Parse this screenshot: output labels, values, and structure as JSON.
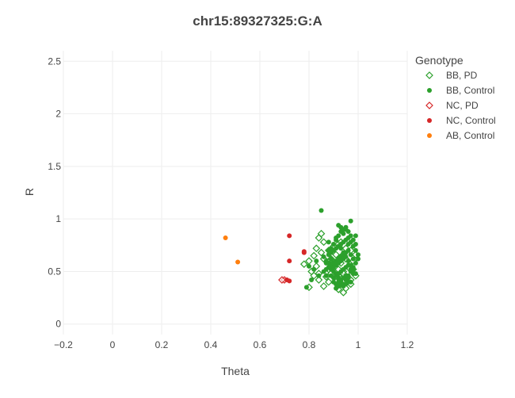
{
  "chart_data": {
    "type": "scatter",
    "title": "chr15:89327325:G:A",
    "xlabel": "Theta",
    "ylabel": "R",
    "xlim": [
      -0.2,
      1.2
    ],
    "ylim": [
      -0.1,
      2.6
    ],
    "xticks": [
      -0.2,
      0,
      0.2,
      0.4,
      0.6,
      0.8,
      1,
      1.2
    ],
    "xtick_labels": [
      "−0.2",
      "0",
      "0.2",
      "0.4",
      "0.6",
      "0.8",
      "1",
      "1.2"
    ],
    "yticks": [
      0,
      0.5,
      1,
      1.5,
      2,
      2.5
    ],
    "ytick_labels": [
      "0",
      "0.5",
      "1",
      "1.5",
      "2",
      "2.5"
    ],
    "grid": true,
    "legend": {
      "title": "Genotype",
      "position": "top-right"
    },
    "series": [
      {
        "name": "BB, PD",
        "marker": "diamond-open",
        "color": "#2ca02c",
        "x": [
          0.84,
          0.85,
          0.86,
          0.83,
          0.82,
          0.8,
          0.78,
          0.81,
          0.84,
          0.87,
          0.88,
          0.86,
          0.84,
          0.82,
          0.8,
          0.83,
          0.85,
          0.88,
          0.9,
          0.92,
          0.93,
          0.95,
          0.97,
          0.99,
          0.98,
          0.96,
          0.94,
          0.92,
          0.91,
          0.93,
          0.95,
          0.97,
          0.96,
          0.94,
          0.92,
          0.9,
          0.89,
          0.91,
          0.93,
          0.95,
          0.98,
          0.99,
          0.97,
          0.94,
          0.92,
          0.9,
          0.88,
          0.86,
          0.89,
          0.93
        ],
        "y": [
          0.82,
          0.86,
          0.78,
          0.72,
          0.65,
          0.6,
          0.57,
          0.5,
          0.48,
          0.45,
          0.4,
          0.36,
          0.42,
          0.46,
          0.35,
          0.55,
          0.68,
          0.7,
          0.74,
          0.76,
          0.78,
          0.72,
          0.7,
          0.66,
          0.6,
          0.54,
          0.5,
          0.46,
          0.4,
          0.38,
          0.34,
          0.38,
          0.44,
          0.48,
          0.52,
          0.56,
          0.62,
          0.66,
          0.64,
          0.62,
          0.52,
          0.46,
          0.42,
          0.3,
          0.33,
          0.58,
          0.52,
          0.62,
          0.48,
          0.58
        ]
      },
      {
        "name": "BB, Control",
        "marker": "circle",
        "color": "#2ca02c",
        "x": [
          0.85,
          0.97,
          0.79,
          0.84,
          0.83,
          0.86,
          0.88,
          0.82,
          0.8,
          0.81,
          0.87,
          0.89,
          0.9,
          0.91,
          0.92,
          0.93,
          0.94,
          0.95,
          0.96,
          0.97,
          0.98,
          0.99,
          1.0,
          0.89,
          0.9,
          0.91,
          0.92,
          0.93,
          0.94,
          0.95,
          0.96,
          0.97,
          0.98,
          0.99,
          0.88,
          0.89,
          0.9,
          0.91,
          0.92,
          0.93,
          0.94,
          0.95,
          0.96,
          0.97,
          0.98,
          0.99,
          0.87,
          0.88,
          0.89,
          0.9,
          0.91,
          0.92,
          0.93,
          0.94,
          0.95,
          0.96,
          0.97,
          0.98,
          0.86,
          0.87,
          0.88,
          0.89,
          0.9,
          0.91,
          0.92,
          0.93,
          0.94,
          0.95,
          0.96,
          0.97,
          0.98,
          0.99,
          0.89,
          0.9,
          0.91,
          0.92,
          0.93,
          0.94,
          0.95,
          0.96,
          0.97,
          0.98,
          0.9,
          0.91,
          0.92,
          0.93,
          0.94,
          0.95,
          0.96,
          0.97,
          0.91,
          0.92,
          0.93,
          0.94,
          0.95,
          0.96,
          0.92,
          0.93,
          0.94,
          0.95,
          0.93,
          0.94,
          0.96,
          0.91,
          0.99,
          1.0,
          0.88,
          0.87
        ],
        "y": [
          1.08,
          0.98,
          0.35,
          0.46,
          0.6,
          0.64,
          0.7,
          0.52,
          0.55,
          0.42,
          0.58,
          0.62,
          0.5,
          0.48,
          0.44,
          0.4,
          0.38,
          0.42,
          0.46,
          0.5,
          0.54,
          0.58,
          0.62,
          0.72,
          0.76,
          0.8,
          0.84,
          0.88,
          0.9,
          0.92,
          0.88,
          0.84,
          0.8,
          0.76,
          0.66,
          0.68,
          0.7,
          0.72,
          0.74,
          0.76,
          0.78,
          0.8,
          0.82,
          0.78,
          0.74,
          0.7,
          0.6,
          0.58,
          0.56,
          0.58,
          0.6,
          0.62,
          0.64,
          0.66,
          0.68,
          0.7,
          0.66,
          0.62,
          0.5,
          0.52,
          0.54,
          0.52,
          0.54,
          0.56,
          0.58,
          0.6,
          0.62,
          0.64,
          0.6,
          0.56,
          0.52,
          0.48,
          0.46,
          0.44,
          0.46,
          0.48,
          0.5,
          0.52,
          0.54,
          0.56,
          0.52,
          0.48,
          0.4,
          0.38,
          0.4,
          0.42,
          0.44,
          0.46,
          0.44,
          0.4,
          0.34,
          0.36,
          0.38,
          0.36,
          0.38,
          0.4,
          0.94,
          0.92,
          0.86,
          0.9,
          0.72,
          0.68,
          0.76,
          0.82,
          0.84,
          0.66,
          0.78,
          0.46
        ]
      },
      {
        "name": "NC, PD",
        "marker": "diamond-open",
        "color": "#d62728",
        "x": [
          0.7,
          0.69
        ],
        "y": [
          0.42,
          0.42
        ]
      },
      {
        "name": "NC, Control",
        "marker": "circle",
        "color": "#d62728",
        "x": [
          0.72,
          0.78,
          0.72,
          0.72,
          0.71,
          0.78
        ],
        "y": [
          0.84,
          0.68,
          0.6,
          0.41,
          0.42,
          0.69
        ]
      },
      {
        "name": "AB, Control",
        "marker": "circle",
        "color": "#ff7f0e",
        "x": [
          0.46,
          0.51
        ],
        "y": [
          0.82,
          0.59
        ]
      }
    ]
  }
}
